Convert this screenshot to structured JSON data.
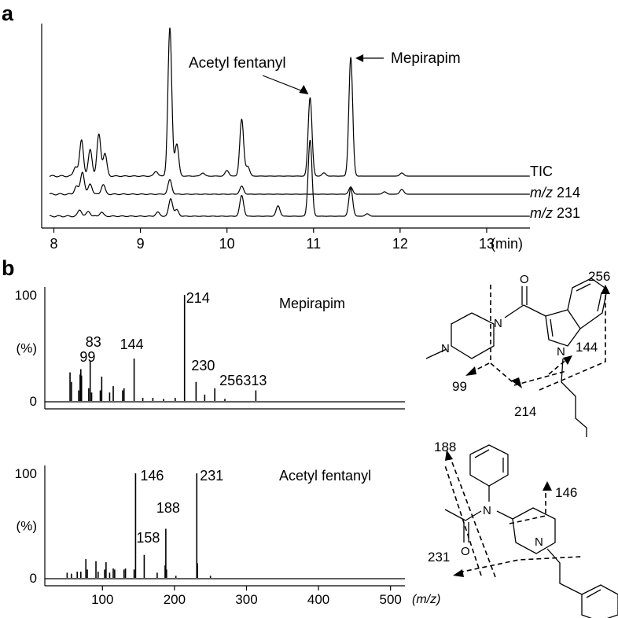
{
  "panels": {
    "a": "a",
    "b": "b"
  },
  "chart_data": [
    {
      "type": "line",
      "panel": "a",
      "xlabel": "(min)",
      "xlim": [
        7.95,
        13.5
      ],
      "xticks": [
        8,
        9,
        10,
        11,
        12,
        13
      ],
      "ylabel": "",
      "grid": false,
      "series": [
        {
          "name": "TIC",
          "baseline": 0.0,
          "peaks": [
            [
              8.25,
              0.12
            ],
            [
              8.32,
              0.45
            ],
            [
              8.42,
              0.33
            ],
            [
              8.52,
              0.52
            ],
            [
              8.59,
              0.28
            ],
            [
              9.18,
              0.06
            ],
            [
              9.34,
              1.85
            ],
            [
              9.42,
              0.4
            ],
            [
              9.72,
              0.04
            ],
            [
              10.0,
              0.07
            ],
            [
              10.17,
              0.71
            ],
            [
              10.24,
              0.12
            ],
            [
              10.96,
              0.98
            ],
            [
              11.12,
              0.04
            ],
            [
              11.43,
              1.48
            ],
            [
              12.02,
              0.04
            ]
          ]
        },
        {
          "name": "m/z 214",
          "baseline": 0.0,
          "peaks": [
            [
              8.26,
              0.1
            ],
            [
              8.33,
              0.28
            ],
            [
              8.42,
              0.13
            ],
            [
              8.57,
              0.12
            ],
            [
              9.34,
              0.18
            ],
            [
              10.17,
              0.1
            ],
            [
              11.43,
              0.09
            ],
            [
              11.82,
              0.03
            ],
            [
              12.02,
              0.06
            ]
          ]
        },
        {
          "name": "m/z 231",
          "baseline": 0.0,
          "peaks": [
            [
              8.3,
              0.08
            ],
            [
              8.4,
              0.06
            ],
            [
              8.55,
              0.05
            ],
            [
              9.2,
              0.05
            ],
            [
              9.35,
              0.22
            ],
            [
              9.42,
              0.08
            ],
            [
              10.17,
              0.26
            ],
            [
              10.59,
              0.13
            ],
            [
              10.96,
              0.95
            ],
            [
              11.43,
              0.35
            ],
            [
              11.62,
              0.03
            ]
          ]
        }
      ],
      "annotations": [
        {
          "text": "Acetyl fentanyl",
          "x": 10.96
        },
        {
          "text": "Mepirapim",
          "x": 11.43
        }
      ]
    },
    {
      "type": "bar",
      "panel": "b",
      "title": "Mepirapim",
      "xlabel": "(m/z)",
      "ylabel": "(%)",
      "xlim": [
        20,
        520
      ],
      "ylim": [
        0,
        100
      ],
      "yticks": [
        0,
        100
      ],
      "peaks": [
        [
          55,
          27
        ],
        [
          57,
          18
        ],
        [
          67,
          10
        ],
        [
          69,
          25
        ],
        [
          70,
          30
        ],
        [
          71,
          24
        ],
        [
          81,
          12
        ],
        [
          83,
          38
        ],
        [
          85,
          8
        ],
        [
          97,
          10
        ],
        [
          99,
          23
        ],
        [
          110,
          8
        ],
        [
          115,
          14
        ],
        [
          128,
          10
        ],
        [
          130,
          12
        ],
        [
          144,
          40
        ],
        [
          156,
          3
        ],
        [
          170,
          3
        ],
        [
          185,
          2
        ],
        [
          201,
          3
        ],
        [
          214,
          100
        ],
        [
          230,
          18
        ],
        [
          242,
          6
        ],
        [
          256,
          12
        ],
        [
          270,
          2
        ],
        [
          313,
          10
        ]
      ],
      "labels": [
        [
          214,
          "214"
        ],
        [
          83,
          "83"
        ],
        [
          99,
          "99"
        ],
        [
          144,
          "144"
        ],
        [
          230,
          "230"
        ],
        [
          256,
          "256"
        ],
        [
          313,
          "313"
        ]
      ]
    },
    {
      "type": "bar",
      "panel": "b",
      "title": "Acetyl fentanyl",
      "xlabel": "(m/z)",
      "ylabel": "(%)",
      "xlim": [
        20,
        520
      ],
      "ylim": [
        0,
        100
      ],
      "xticks": [
        100,
        200,
        300,
        400,
        500
      ],
      "yticks": [
        0,
        100
      ],
      "peaks": [
        [
          51,
          5
        ],
        [
          57,
          4
        ],
        [
          65,
          6
        ],
        [
          70,
          6
        ],
        [
          77,
          18
        ],
        [
          79,
          8
        ],
        [
          91,
          16
        ],
        [
          94,
          6
        ],
        [
          103,
          8
        ],
        [
          105,
          15
        ],
        [
          110,
          5
        ],
        [
          115,
          9
        ],
        [
          117,
          8
        ],
        [
          130,
          8
        ],
        [
          132,
          9
        ],
        [
          144,
          8
        ],
        [
          146,
          100
        ],
        [
          158,
          22
        ],
        [
          176,
          5
        ],
        [
          187,
          12
        ],
        [
          188,
          47
        ],
        [
          189,
          8
        ],
        [
          202,
          2
        ],
        [
          231,
          100
        ],
        [
          232,
          14
        ],
        [
          250,
          2
        ]
      ],
      "labels": [
        [
          146,
          "146"
        ],
        [
          231,
          "231"
        ],
        [
          188,
          "188"
        ],
        [
          158,
          "158"
        ]
      ]
    }
  ],
  "structures": {
    "mepirapim": {
      "fragments": [
        "99",
        "214",
        "144",
        "256"
      ]
    },
    "acetyl_fentanyl": {
      "fragments": [
        "188",
        "146",
        "231"
      ]
    }
  }
}
